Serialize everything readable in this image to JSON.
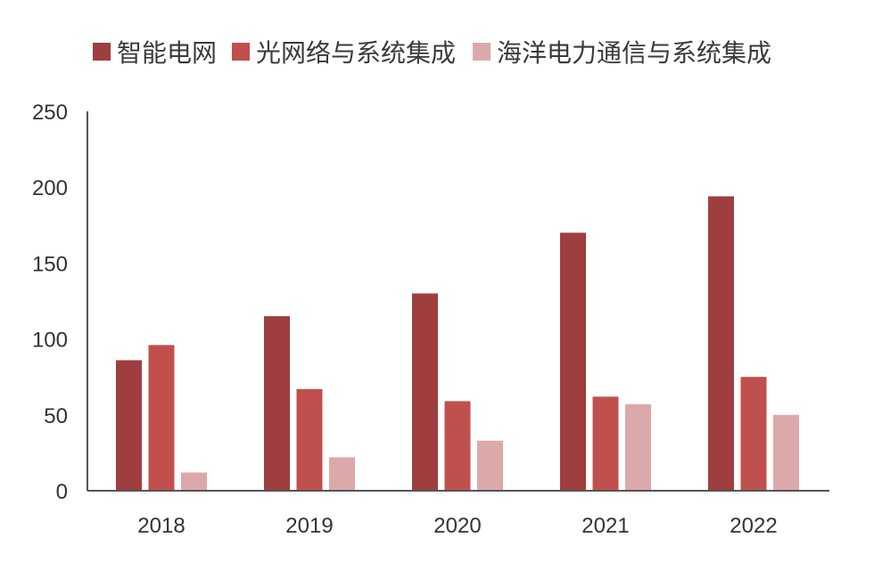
{
  "chart_data": {
    "type": "bar",
    "title": "",
    "xlabel": "",
    "ylabel": "",
    "categories": [
      "2018",
      "2019",
      "2020",
      "2021",
      "2022"
    ],
    "ylim": [
      0,
      250
    ],
    "yticks": [
      0,
      50,
      100,
      150,
      200,
      250
    ],
    "ytick_labels": [
      "0",
      "50",
      "100",
      "150",
      "200",
      "250"
    ],
    "legend_position": "top",
    "grid": false,
    "series": [
      {
        "name": "智能电网",
        "color": "#9e3e3f",
        "values": [
          86,
          115,
          130,
          170,
          194
        ]
      },
      {
        "name": "光网络与系统集成",
        "color": "#c0504e",
        "values": [
          96,
          67,
          59,
          62,
          75
        ]
      },
      {
        "name": "海洋电力通信与系统集成",
        "color": "#dba9aa",
        "values": [
          12,
          22,
          33,
          57,
          50
        ]
      }
    ]
  }
}
